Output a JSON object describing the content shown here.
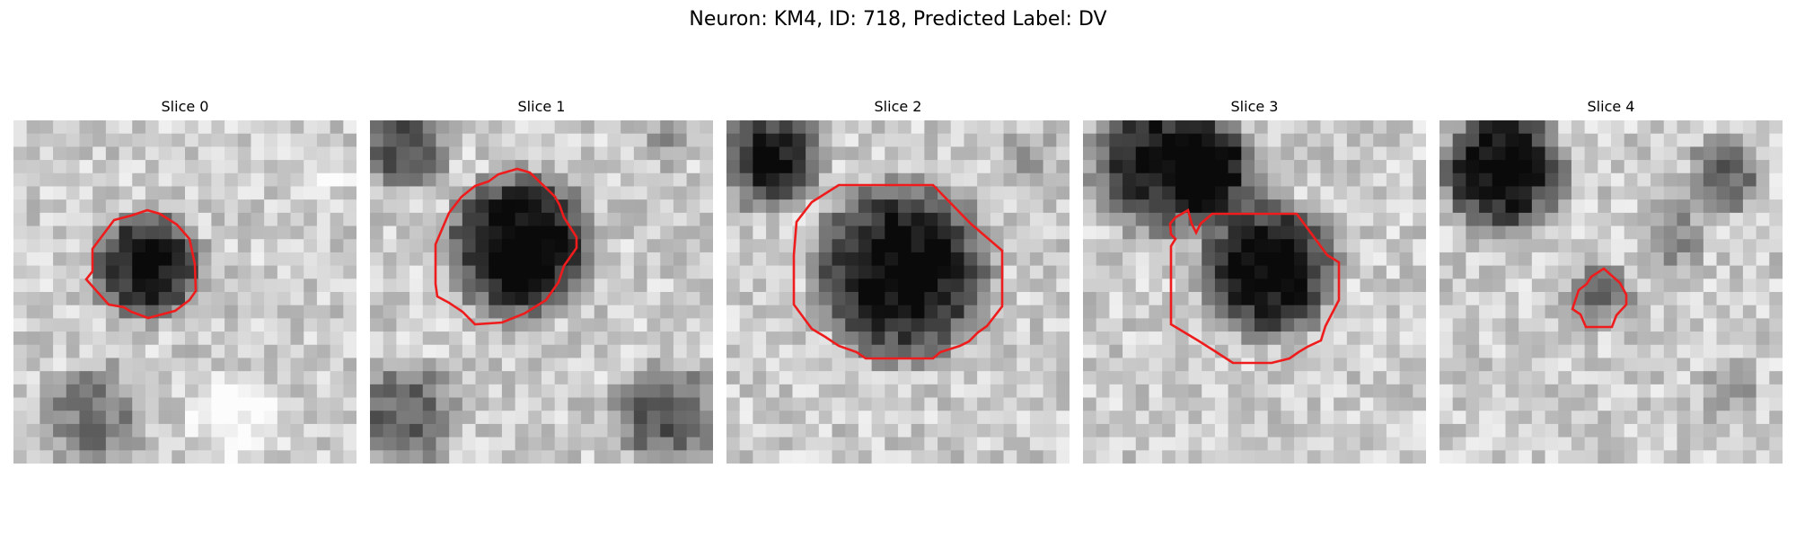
{
  "figure": {
    "title": "Neuron: KM4, ID: 718, Predicted Label: DV"
  },
  "colors": {
    "contour": "#ee1c1c",
    "background": "#ffffff"
  },
  "panels": [
    {
      "title": "Slice 0"
    },
    {
      "title": "Slice 1"
    },
    {
      "title": "Slice 2"
    },
    {
      "title": "Slice 3"
    },
    {
      "title": "Slice 4"
    }
  ]
}
